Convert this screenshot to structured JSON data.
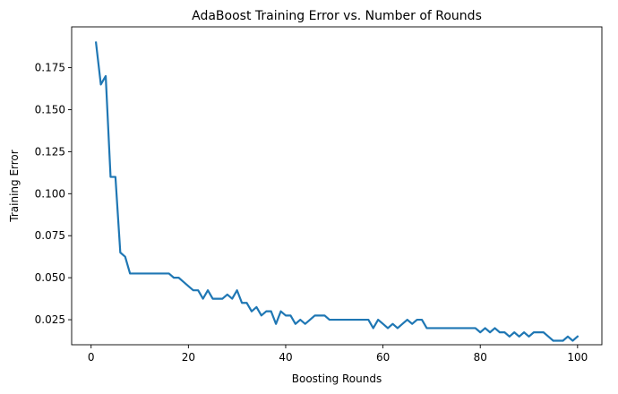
{
  "chart_data": {
    "type": "line",
    "title": "AdaBoost Training Error vs. Number of Rounds",
    "xlabel": "Boosting Rounds",
    "ylabel": "Training Error",
    "xlim": [
      -4.0,
      105.0
    ],
    "ylim": [
      0.0101,
      0.1993
    ],
    "xticks": [
      0,
      20,
      40,
      60,
      80,
      100
    ],
    "yticks": [
      0.025,
      0.05,
      0.075,
      0.1,
      0.125,
      0.15,
      0.175
    ],
    "xtick_labels": [
      "0",
      "20",
      "40",
      "60",
      "80",
      "100"
    ],
    "ytick_labels": [
      "0.025",
      "0.050",
      "0.075",
      "0.100",
      "0.125",
      "0.150",
      "0.175"
    ],
    "grid": false,
    "series": [
      {
        "color": "#1f77b4",
        "x": [
          1,
          2,
          3,
          4,
          5,
          6,
          7,
          8,
          9,
          10,
          11,
          12,
          13,
          14,
          15,
          16,
          17,
          18,
          19,
          20,
          21,
          22,
          23,
          24,
          25,
          26,
          27,
          28,
          29,
          30,
          31,
          32,
          33,
          34,
          35,
          36,
          37,
          38,
          39,
          40,
          41,
          42,
          43,
          44,
          45,
          46,
          47,
          48,
          49,
          50,
          51,
          52,
          53,
          54,
          55,
          56,
          57,
          58,
          59,
          60,
          61,
          62,
          63,
          64,
          65,
          66,
          67,
          68,
          69,
          70,
          71,
          72,
          73,
          74,
          75,
          76,
          77,
          78,
          79,
          80,
          81,
          82,
          83,
          84,
          85,
          86,
          87,
          88,
          89,
          90,
          91,
          92,
          93,
          94,
          95,
          96,
          97,
          98,
          99,
          100
        ],
        "values": [
          0.19,
          0.165,
          0.17,
          0.11,
          0.11,
          0.065,
          0.0625,
          0.0525,
          0.0525,
          0.0525,
          0.0525,
          0.0525,
          0.0525,
          0.0525,
          0.0525,
          0.0525,
          0.05,
          0.05,
          0.0475,
          0.045,
          0.0425,
          0.0425,
          0.0375,
          0.0425,
          0.0375,
          0.0375,
          0.0375,
          0.04,
          0.0375,
          0.0425,
          0.035,
          0.035,
          0.03,
          0.0325,
          0.0275,
          0.03,
          0.03,
          0.0225,
          0.03,
          0.0275,
          0.0275,
          0.0225,
          0.025,
          0.0225,
          0.025,
          0.0275,
          0.0275,
          0.0275,
          0.025,
          0.025,
          0.025,
          0.025,
          0.025,
          0.025,
          0.025,
          0.025,
          0.025,
          0.02,
          0.025,
          0.0225,
          0.02,
          0.0225,
          0.02,
          0.0225,
          0.025,
          0.0225,
          0.025,
          0.025,
          0.02,
          0.02,
          0.02,
          0.02,
          0.02,
          0.02,
          0.02,
          0.02,
          0.02,
          0.02,
          0.02,
          0.0175,
          0.02,
          0.0175,
          0.02,
          0.0175,
          0.0175,
          0.015,
          0.0175,
          0.015,
          0.0175,
          0.015,
          0.0175,
          0.0175,
          0.0175,
          0.015,
          0.0125,
          0.0125,
          0.0125,
          0.015,
          0.0125,
          0.015
        ]
      }
    ]
  }
}
